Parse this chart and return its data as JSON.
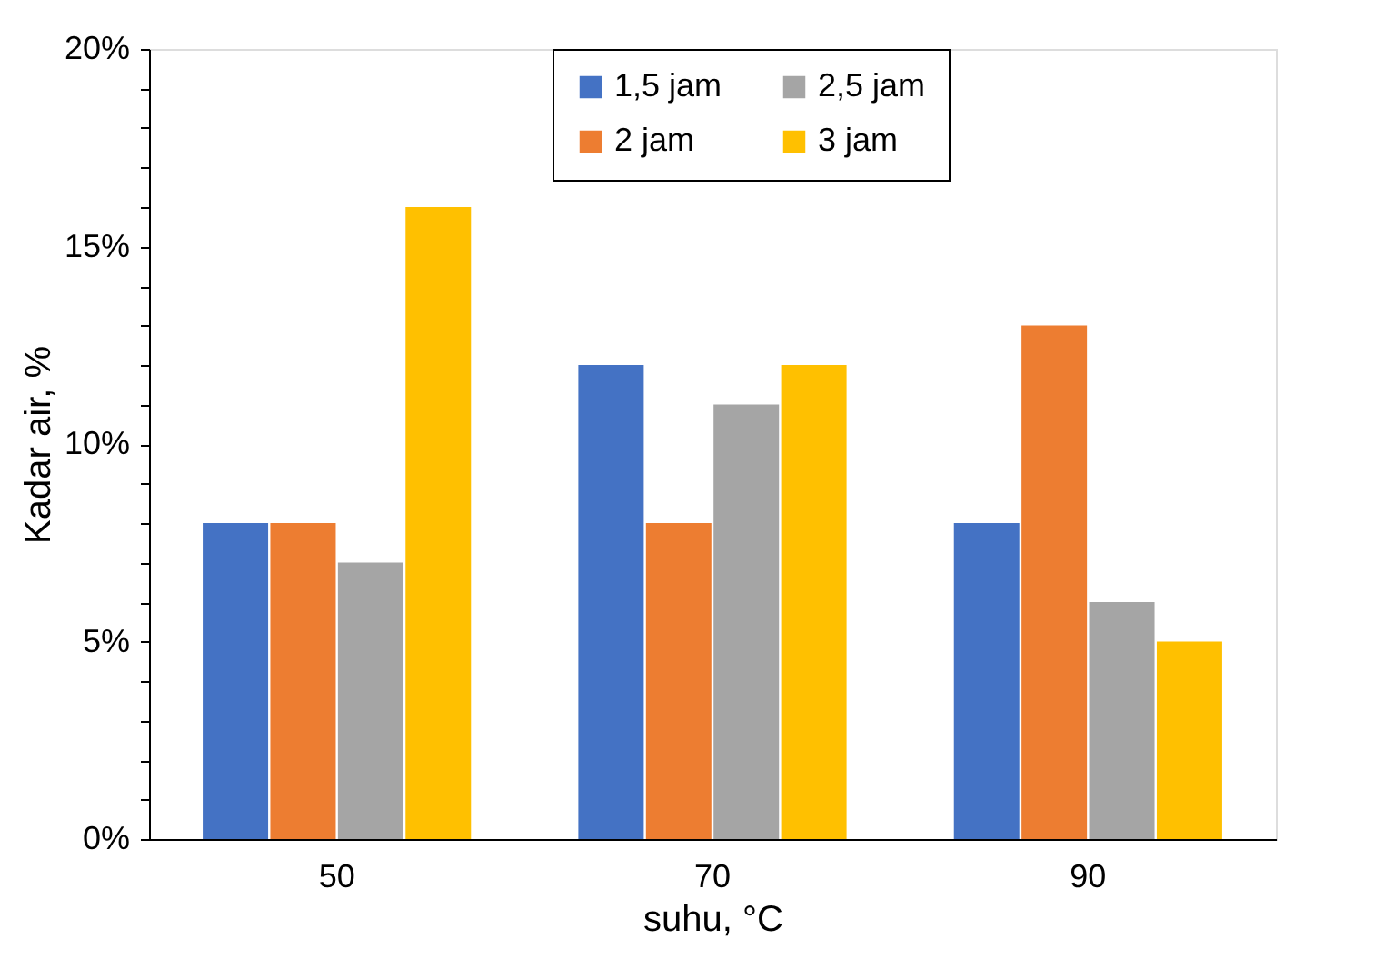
{
  "chart_data": {
    "type": "bar",
    "xlabel": "suhu, °C",
    "ylabel": "Kadar air, %",
    "categories": [
      "50",
      "70",
      "90"
    ],
    "series": [
      {
        "name": "1,5 jam",
        "color": "#4472c4",
        "values": [
          8,
          12,
          8
        ]
      },
      {
        "name": "2 jam",
        "color": "#ed7d31",
        "values": [
          8,
          8,
          13
        ]
      },
      {
        "name": "2,5 jam",
        "color": "#a5a5a5",
        "values": [
          7,
          11,
          6
        ]
      },
      {
        "name": "3 jam",
        "color": "#ffc000",
        "values": [
          16,
          12,
          5
        ]
      }
    ],
    "ylim": [
      0,
      20
    ],
    "yticks": [
      {
        "value": 0,
        "label": "0%"
      },
      {
        "value": 1,
        "label": null
      },
      {
        "value": 2,
        "label": null
      },
      {
        "value": 3,
        "label": null
      },
      {
        "value": 4,
        "label": null
      },
      {
        "value": 5,
        "label": "5%"
      },
      {
        "value": 6,
        "label": null
      },
      {
        "value": 7,
        "label": null
      },
      {
        "value": 8,
        "label": null
      },
      {
        "value": 9,
        "label": null
      },
      {
        "value": 10,
        "label": "10%"
      },
      {
        "value": 11,
        "label": null
      },
      {
        "value": 12,
        "label": null
      },
      {
        "value": 13,
        "label": null
      },
      {
        "value": 14,
        "label": null
      },
      {
        "value": 15,
        "label": "15%"
      },
      {
        "value": 16,
        "label": null
      },
      {
        "value": 17,
        "label": null
      },
      {
        "value": 18,
        "label": null
      },
      {
        "value": 19,
        "label": null
      },
      {
        "value": 20,
        "label": "20%"
      }
    ],
    "grid": false,
    "legend": "top right"
  }
}
